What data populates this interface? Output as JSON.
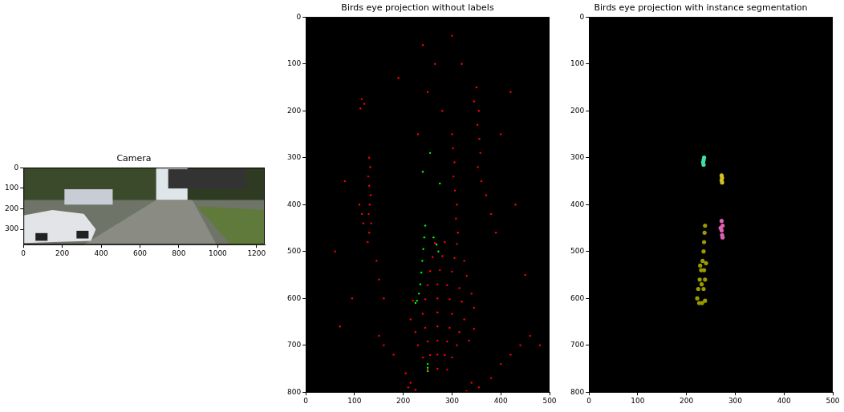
{
  "chart_data": [
    {
      "type": "image",
      "title": "Camera",
      "xlim": [
        0,
        1242
      ],
      "ylim": [
        375,
        0
      ],
      "xticks": [
        0,
        200,
        400,
        600,
        800,
        1000,
        1200
      ],
      "yticks": [
        0,
        100,
        200,
        300
      ],
      "grid": false
    },
    {
      "type": "scatter",
      "title": "Birds eye projection without labels",
      "xlim": [
        0,
        500
      ],
      "ylim": [
        800,
        0
      ],
      "xticks": [
        0,
        100,
        200,
        300,
        400,
        500
      ],
      "yticks": [
        0,
        100,
        200,
        300,
        400,
        500,
        600,
        700,
        800
      ],
      "grid": false,
      "series": [
        {
          "color": "#ff0000",
          "points": [
            [
              250,
              752
            ],
            [
              270,
              750
            ],
            [
              290,
              752
            ],
            [
              240,
              726
            ],
            [
              255,
              721
            ],
            [
              270,
              720
            ],
            [
              285,
              721
            ],
            [
              300,
              726
            ],
            [
              230,
              700
            ],
            [
              250,
              692
            ],
            [
              270,
              690
            ],
            [
              290,
              692
            ],
            [
              310,
              700
            ],
            [
              225,
              672
            ],
            [
              245,
              663
            ],
            [
              270,
              660
            ],
            [
              295,
              663
            ],
            [
              315,
              672
            ],
            [
              335,
              690
            ],
            [
              215,
              645
            ],
            [
              240,
              633
            ],
            [
              270,
              630
            ],
            [
              300,
              633
            ],
            [
              325,
              645
            ],
            [
              345,
              665
            ],
            [
              220,
              605
            ],
            [
              245,
              602
            ],
            [
              270,
              600
            ],
            [
              295,
              602
            ],
            [
              320,
              607
            ],
            [
              345,
              620
            ],
            [
              250,
              572
            ],
            [
              270,
              570
            ],
            [
              290,
              572
            ],
            [
              315,
              578
            ],
            [
              340,
              590
            ],
            [
              255,
              542
            ],
            [
              275,
              540
            ],
            [
              300,
              543
            ],
            [
              330,
              552
            ],
            [
              260,
              512
            ],
            [
              280,
              510
            ],
            [
              305,
              514
            ],
            [
              325,
              520
            ],
            [
              265,
              482
            ],
            [
              285,
              480
            ],
            [
              310,
              484
            ],
            [
              130,
              300
            ],
            [
              132,
              320
            ],
            [
              128,
              340
            ],
            [
              130,
              360
            ],
            [
              133,
              380
            ],
            [
              131,
              400
            ],
            [
              129,
              420
            ],
            [
              134,
              440
            ],
            [
              130,
              460
            ],
            [
              127,
              480
            ],
            [
              115,
              175
            ],
            [
              120,
              185
            ],
            [
              112,
              195
            ],
            [
              110,
              400
            ],
            [
              115,
              420
            ],
            [
              118,
              440
            ],
            [
              145,
              520
            ],
            [
              150,
              560
            ],
            [
              160,
              600
            ],
            [
              300,
              250
            ],
            [
              302,
              280
            ],
            [
              305,
              310
            ],
            [
              303,
              340
            ],
            [
              306,
              370
            ],
            [
              310,
              400
            ],
            [
              308,
              430
            ],
            [
              312,
              460
            ],
            [
              355,
              200
            ],
            [
              352,
              230
            ],
            [
              356,
              260
            ],
            [
              358,
              290
            ],
            [
              353,
              320
            ],
            [
              360,
              350
            ],
            [
              345,
              180
            ],
            [
              370,
              380
            ],
            [
              380,
              420
            ],
            [
              390,
              460
            ],
            [
              205,
              760
            ],
            [
              215,
              780
            ],
            [
              225,
              795
            ],
            [
              210,
              790
            ],
            [
              340,
              780
            ],
            [
              355,
              790
            ],
            [
              330,
              798
            ],
            [
              380,
              770
            ],
            [
              400,
              740
            ],
            [
              420,
              720
            ],
            [
              440,
              700
            ],
            [
              460,
              680
            ],
            [
              180,
              720
            ],
            [
              160,
              700
            ],
            [
              150,
              680
            ],
            [
              240,
              60
            ],
            [
              265,
              100
            ],
            [
              300,
              40
            ],
            [
              320,
              100
            ],
            [
              350,
              150
            ],
            [
              190,
              130
            ],
            [
              400,
              250
            ],
            [
              430,
              400
            ],
            [
              80,
              350
            ],
            [
              60,
              500
            ],
            [
              450,
              550
            ],
            [
              480,
              700
            ],
            [
              95,
              600
            ],
            [
              70,
              660
            ],
            [
              420,
              160
            ],
            [
              280,
              200
            ],
            [
              230,
              250
            ],
            [
              250,
              160
            ]
          ]
        },
        {
          "color": "#00ff00",
          "points": [
            [
              245,
              445
            ],
            [
              243,
              470
            ],
            [
              241,
              495
            ],
            [
              239,
              520
            ],
            [
              237,
              545
            ],
            [
              235,
              570
            ],
            [
              232,
              590
            ],
            [
              228,
              605
            ],
            [
              225,
              610
            ],
            [
              250,
              740
            ],
            [
              250,
              748
            ],
            [
              250,
              755
            ],
            [
              275,
              355
            ],
            [
              240,
              330
            ],
            [
              268,
              485
            ],
            [
              262,
              470
            ],
            [
              272,
              500
            ],
            [
              255,
              290
            ]
          ]
        }
      ]
    },
    {
      "type": "scatter",
      "title": "Birds eye projection with instance segmentation",
      "xlim": [
        0,
        500
      ],
      "ylim": [
        800,
        0
      ],
      "xticks": [
        0,
        100,
        200,
        300,
        400,
        500
      ],
      "yticks": [
        0,
        100,
        200,
        300,
        400,
        500,
        600,
        700,
        800
      ],
      "grid": false,
      "series": [
        {
          "color": "#40e0a0",
          "points": [
            [
              236,
              300
            ],
            [
              235,
              305
            ],
            [
              234,
              310
            ],
            [
              235,
              315
            ]
          ]
        },
        {
          "color": "#d4c020",
          "points": [
            [
              272,
              338
            ],
            [
              273,
              343
            ],
            [
              272,
              348
            ],
            [
              273,
              353
            ]
          ]
        },
        {
          "color": "#e060b0",
          "points": [
            [
              272,
              435
            ],
            [
              274,
              445
            ],
            [
              272,
              455
            ],
            [
              273,
              465
            ],
            [
              274,
              470
            ],
            [
              270,
              450
            ]
          ]
        },
        {
          "color": "#9a9a00",
          "points": [
            [
              238,
              445
            ],
            [
              237,
              460
            ],
            [
              236,
              480
            ],
            [
              235,
              500
            ],
            [
              233,
              520
            ],
            [
              230,
              540
            ],
            [
              227,
              560
            ],
            [
              224,
              580
            ],
            [
              222,
              600
            ],
            [
              226,
              610
            ],
            [
              232,
              610
            ],
            [
              238,
              605
            ],
            [
              235,
              580
            ],
            [
              238,
              560
            ],
            [
              228,
              530
            ],
            [
              240,
              525
            ],
            [
              236,
              540
            ],
            [
              231,
              570
            ]
          ]
        }
      ]
    }
  ]
}
